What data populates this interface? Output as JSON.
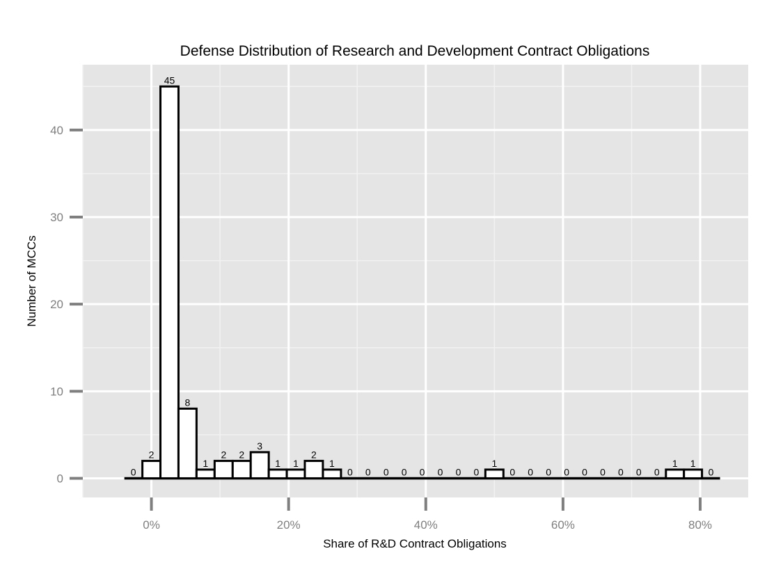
{
  "chart_data": {
    "type": "bar",
    "title": "Defense Distribution of Research and Development Contract Obligations",
    "xlabel": "Share of R&D Contract Obligations",
    "ylabel": "Number of MCCs",
    "bin_width": 0.02632,
    "x": [
      -0.0263,
      0.0,
      0.0263,
      0.0526,
      0.0789,
      0.1053,
      0.1316,
      0.1579,
      0.1842,
      0.2105,
      0.2368,
      0.2632,
      0.2895,
      0.3158,
      0.3421,
      0.3684,
      0.3947,
      0.4211,
      0.4474,
      0.4737,
      0.5,
      0.5263,
      0.5526,
      0.5789,
      0.6053,
      0.6316,
      0.6579,
      0.6842,
      0.7105,
      0.7368,
      0.7632,
      0.7895,
      0.8158
    ],
    "values": [
      0,
      2,
      45,
      8,
      1,
      2,
      2,
      3,
      1,
      1,
      2,
      1,
      0,
      0,
      0,
      0,
      0,
      0,
      0,
      0,
      1,
      0,
      0,
      0,
      0,
      0,
      0,
      0,
      0,
      0,
      1,
      1,
      0
    ],
    "xlim": [
      -0.1,
      0.87
    ],
    "ylim": [
      -2.2,
      47.5
    ],
    "x_ticks": [
      0,
      0.2,
      0.4,
      0.6,
      0.8
    ],
    "x_tick_labels": [
      "0%",
      "20%",
      "40%",
      "60%",
      "80%"
    ],
    "y_ticks": [
      0,
      10,
      20,
      30,
      40
    ],
    "y_tick_labels": [
      "0",
      "10",
      "20",
      "30",
      "40"
    ],
    "grid": true,
    "colors": {
      "panel": "#e5e5e5",
      "grid_major": "#ffffff",
      "grid_minor": "#f2f2f2",
      "bar_fill": "#ffffff",
      "bar_outline": "#000000",
      "tick": "#7f7f7f"
    }
  }
}
